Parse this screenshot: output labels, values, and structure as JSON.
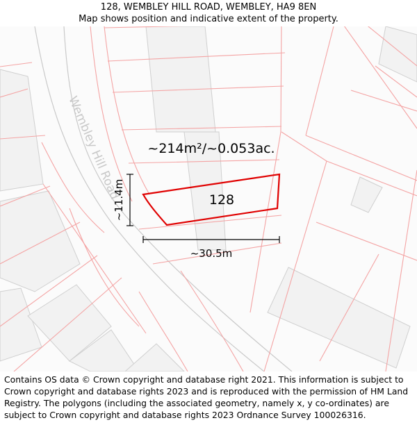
{
  "header": {
    "address": "128, WEMBLEY HILL ROAD, WEMBLEY, HA9 8EN",
    "subtitle": "Map shows position and indicative extent of the property."
  },
  "map": {
    "road_name": "Wembley Hill Road",
    "plot_number": "128",
    "area_label": "~214m²/~0.053ac.",
    "width_label": "~30.5m",
    "height_label": "~11.4m",
    "colors": {
      "boundary": "#e00000",
      "parcel_lines": "#f4a3a3",
      "building_fill": "#f2f2f2",
      "building_stroke": "#cfcfcf",
      "road_text": "#c8c8c8"
    }
  },
  "footer": {
    "attribution": "Contains OS data © Crown copyright and database right 2021. This information is subject to Crown copyright and database rights 2023 and is reproduced with the permission of HM Land Registry. The polygons (including the associated geometry, namely x, y co-ordinates) are subject to Crown copyright and database rights 2023 Ordnance Survey 100026316."
  }
}
